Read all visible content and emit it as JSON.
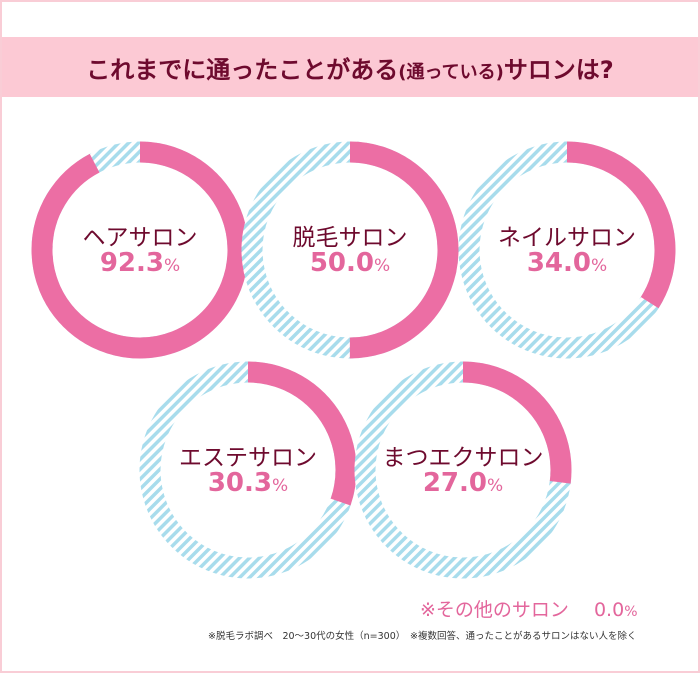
{
  "title": {
    "main": "これまでに通ったことがある",
    "paren": "(通っている)",
    "tail": "サロンは?"
  },
  "colors": {
    "title_text": "#6e0a2e",
    "title_band": "#fcc9d4",
    "filled": "#ec6ea4",
    "hatch": "#a8dcec",
    "value_text": "#e3669c",
    "border": "#f9cdd6"
  },
  "donuts": [
    {
      "label": "ヘアサロン",
      "value": "92.3",
      "unit": "%"
    },
    {
      "label": "脱毛サロン",
      "value": "50.0",
      "unit": "%"
    },
    {
      "label": "ネイルサロン",
      "value": "34.0",
      "unit": "%"
    },
    {
      "label": "エステサロン",
      "value": "30.3",
      "unit": "%"
    },
    {
      "label": "まつエクサロン",
      "value": "27.0",
      "unit": "%"
    }
  ],
  "other": {
    "label": "※その他のサロン",
    "value": "0.0",
    "unit": "%"
  },
  "footnote": "※脱毛ラボ調べ　20〜30代の女性（n=300）　※複数回答、通ったことがあるサロンはない人を除く",
  "chart_data": {
    "type": "pie",
    "subtype": "donut (one per category, percentage of respondents)",
    "title": "これまでに通ったことがある(通っている)サロンは?",
    "categories": [
      "ヘアサロン",
      "脱毛サロン",
      "ネイルサロン",
      "エステサロン",
      "まつエクサロン",
      "その他のサロン"
    ],
    "values": [
      92.3,
      50.0,
      34.0,
      30.3,
      27.0,
      0.0
    ],
    "unit": "%",
    "note": "脱毛ラボ調べ 20〜30代の女性(n=300) 複数回答、通ったことがあるサロンはない人を除く"
  }
}
